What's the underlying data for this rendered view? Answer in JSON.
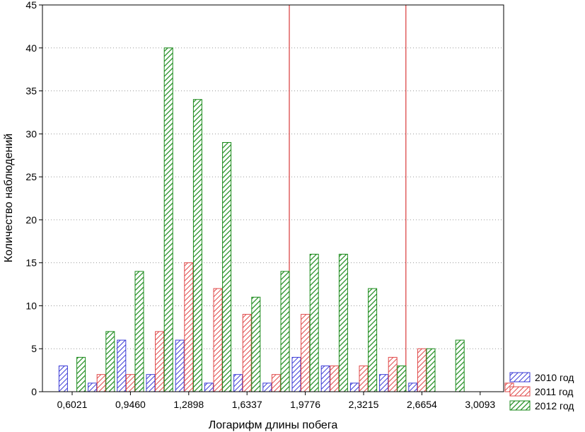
{
  "chart_data": {
    "type": "bar",
    "title": "",
    "xlabel": "Логарифм длины побега",
    "ylabel": "Количество наблюдений",
    "ylim": [
      0,
      45
    ],
    "yticks": [
      0,
      5,
      10,
      15,
      20,
      25,
      30,
      35,
      40,
      45
    ],
    "xtick_labels": [
      "0,6021",
      "0,9460",
      "1,2898",
      "1,6337",
      "1,9776",
      "2,3215",
      "2,6654",
      "3,0093"
    ],
    "grid": true,
    "legend_position": "bottom-right",
    "categories": [
      "0,6021",
      "0,7741",
      "0,9460",
      "1,1179",
      "1,2898",
      "1,4618",
      "1,6337",
      "1,8056",
      "1,9776",
      "2,1495",
      "2,3215",
      "2,4934",
      "2,6654",
      "2,8373",
      "3,0093",
      "3,1812"
    ],
    "series": [
      {
        "name": "2010 год",
        "color": "#3a3ad6",
        "values": [
          3,
          1,
          6,
          2,
          6,
          1,
          2,
          1,
          4,
          3,
          1,
          2,
          1,
          0,
          0,
          0
        ]
      },
      {
        "name": "2011 год",
        "color": "#e04848",
        "values": [
          0,
          2,
          2,
          7,
          15,
          12,
          9,
          2,
          9,
          3,
          3,
          4,
          5,
          0,
          0,
          1
        ]
      },
      {
        "name": "2012 год",
        "color": "#1a8a1a",
        "values": [
          4,
          7,
          14,
          40,
          34,
          29,
          11,
          14,
          16,
          16,
          12,
          3,
          5,
          6,
          0,
          0
        ]
      }
    ],
    "vertical_lines_x": [
      "1,9776",
      "2,6654"
    ]
  }
}
